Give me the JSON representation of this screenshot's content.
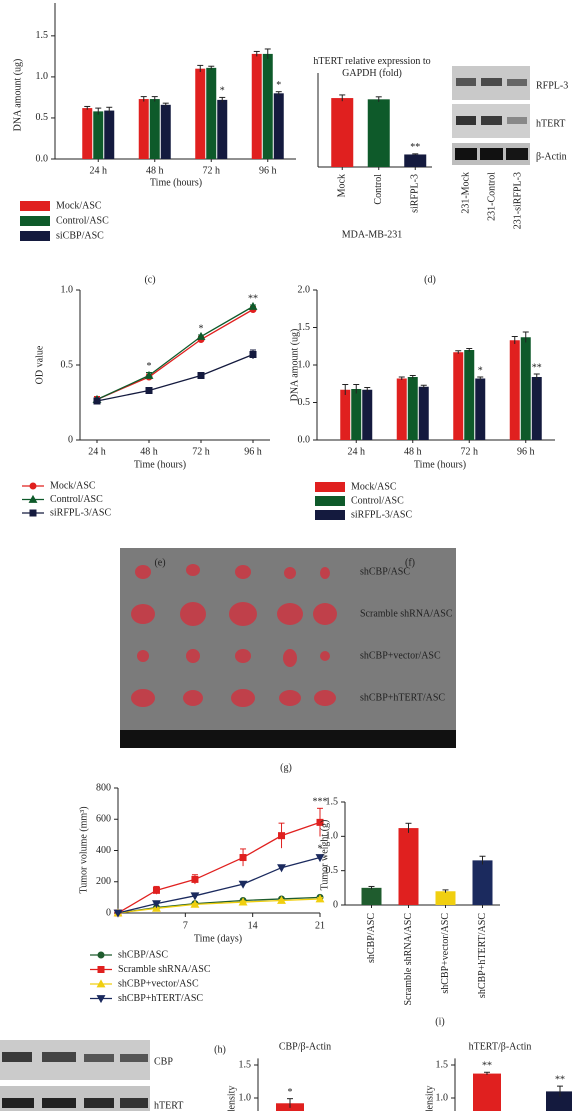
{
  "chart_data": [
    {
      "type": "bar",
      "y_label": "DNA amount (ug)",
      "x_label": "Time (hours)",
      "categories": [
        "24 h",
        "48 h",
        "72 h",
        "96 h"
      ],
      "series": [
        {
          "name": "Mock/ASC",
          "color": "#e0201f",
          "values": [
            0.62,
            0.73,
            1.1,
            1.28
          ],
          "errors": [
            0.02,
            0.03,
            0.04,
            0.03
          ],
          "annotations": [
            null,
            null,
            null,
            null
          ]
        },
        {
          "name": "Control/ASC",
          "color": "#0e5a2a",
          "values": [
            0.58,
            0.73,
            1.11,
            1.28
          ],
          "errors": [
            0.04,
            0.03,
            0.02,
            0.06
          ],
          "annotations": [
            null,
            null,
            null,
            null
          ]
        },
        {
          "name": "siCBP/ASC",
          "color": "#141a3e",
          "values": [
            0.59,
            0.66,
            0.72,
            0.8
          ],
          "errors": [
            0.04,
            0.02,
            0.03,
            0.02
          ],
          "annotations": [
            null,
            null,
            "*",
            "*"
          ]
        }
      ],
      "ylim": [
        0,
        1.9
      ],
      "yticks": [
        {
          "value": 0,
          "label": "0.0"
        },
        0.5,
        {
          "value": 1,
          "label": "1.0"
        },
        1.5
      ]
    },
    {
      "type": "bar",
      "title": "hTERT relative expression to GAPDH (fold)",
      "x_label": "MDA-MB-231",
      "categories": [
        "Mock",
        "Control",
        "siRFPL-3"
      ],
      "values": [
        1.1,
        1.08,
        0.2
      ],
      "errors": [
        0.05,
        0.04,
        0.01
      ],
      "colors": [
        "#e0201f",
        "#0e5a2a",
        "#141a3e"
      ],
      "annotations": [
        null,
        null,
        "**"
      ],
      "ylim": [
        0,
        1.5
      ]
    },
    {
      "type": "line",
      "y_label": "OD value",
      "x_label": "Time (hours)",
      "categories": [
        "24 h",
        "48 h",
        "72 h",
        "96 h"
      ],
      "series": [
        {
          "name": "Mock/ASC",
          "color": "#e0201f",
          "marker": "circle",
          "values": [
            0.27,
            0.42,
            0.67,
            0.87
          ],
          "errors": [
            0.02,
            0.02,
            0.02,
            0.02
          ],
          "annotations": [
            null,
            null,
            null,
            null
          ]
        },
        {
          "name": "Control/ASC",
          "color": "#0e5a2a",
          "marker": "triangle",
          "values": [
            0.27,
            0.43,
            0.69,
            0.89
          ],
          "errors": [
            0.01,
            0.02,
            0.01,
            0.01
          ],
          "annotations": [
            null,
            "*",
            "*",
            "**"
          ]
        },
        {
          "name": "siRFPL-3/ASC",
          "color": "#141a3e",
          "marker": "square",
          "values": [
            0.26,
            0.33,
            0.43,
            0.57
          ],
          "errors": [
            0.02,
            0.02,
            0.02,
            0.03
          ],
          "annotations": [
            null,
            null,
            null,
            null
          ]
        }
      ],
      "ylim": [
        0,
        1
      ],
      "yticks": [
        0,
        0.5,
        {
          "value": 1,
          "label": "1.0"
        }
      ]
    },
    {
      "type": "bar",
      "y_label": "DNA amount (ug)",
      "x_label": "Time (hours)",
      "categories": [
        "24 h",
        "48 h",
        "72 h",
        "96 h"
      ],
      "series": [
        {
          "name": "Mock/ASC",
          "color": "#e0201f",
          "values": [
            0.67,
            0.82,
            1.17,
            1.33
          ],
          "errors": [
            0.07,
            0.02,
            0.02,
            0.05
          ],
          "annotations": [
            null,
            null,
            null,
            null
          ]
        },
        {
          "name": "Control/ASC",
          "color": "#0e5a2a",
          "values": [
            0.68,
            0.84,
            1.2,
            1.37
          ],
          "errors": [
            0.06,
            0.02,
            0.02,
            0.07
          ],
          "annotations": [
            null,
            null,
            null,
            null
          ]
        },
        {
          "name": "siRFPL-3/ASC",
          "color": "#141a3e",
          "values": [
            0.67,
            0.71,
            0.82,
            0.84
          ],
          "errors": [
            0.03,
            0.02,
            0.02,
            0.04
          ],
          "annotations": [
            null,
            null,
            "*",
            "**"
          ]
        }
      ],
      "ylim": [
        0,
        2
      ],
      "yticks": [
        {
          "value": 0,
          "label": "0.0"
        },
        0.5,
        {
          "value": 1,
          "label": "1.0"
        },
        1.5,
        {
          "value": 2,
          "label": "2.0"
        }
      ]
    },
    {
      "type": "line",
      "y_label": "Tumor volume (mm³)",
      "x_label": "Time (days)",
      "x": [
        0,
        4,
        8,
        13,
        17,
        21
      ],
      "series": [
        {
          "name": "shCBP/ASC",
          "color": "#1f5c2e",
          "marker": "circle",
          "values": [
            0,
            35,
            60,
            80,
            90,
            100
          ],
          "errors": [
            0,
            4,
            5,
            6,
            6,
            8
          ],
          "annotations": [
            null,
            null,
            null,
            null,
            null,
            null
          ]
        },
        {
          "name": "Scramble shRNA/ASC",
          "color": "#e0201f",
          "marker": "square",
          "values": [
            0,
            145,
            215,
            355,
            495,
            580
          ],
          "errors": [
            0,
            25,
            30,
            55,
            80,
            90
          ],
          "annotations": [
            null,
            null,
            null,
            null,
            null,
            "***"
          ]
        },
        {
          "name": "shCBP+vector/ASC",
          "color": "#f0cf10",
          "marker": "triangle",
          "values": [
            0,
            30,
            55,
            70,
            80,
            90
          ],
          "errors": [
            0,
            4,
            5,
            6,
            6,
            8
          ],
          "annotations": [
            null,
            null,
            null,
            null,
            null,
            null
          ]
        },
        {
          "name": "shCBP+hTERT/ASC",
          "color": "#1b2a5e",
          "marker": "triangle-down",
          "values": [
            0,
            60,
            110,
            185,
            290,
            355
          ],
          "errors": [
            0,
            5,
            8,
            10,
            15,
            15
          ],
          "annotations": [
            null,
            null,
            null,
            null,
            null,
            "*"
          ]
        }
      ],
      "xlim": [
        0,
        21
      ],
      "xticks": [
        7,
        14,
        21
      ],
      "ylim": [
        0,
        800
      ],
      "yticks": [
        0,
        200,
        400,
        600,
        800
      ]
    },
    {
      "type": "bar",
      "y_label": "Tumor weight (g)",
      "categories": [
        "shCBP/ASC",
        "Scramble shRNA/ASC",
        "shCBP+vector/ASC",
        "shCBP+hTERT/ASC"
      ],
      "values": [
        0.25,
        1.12,
        0.2,
        0.65
      ],
      "errors": [
        0.02,
        0.07,
        0.02,
        0.06
      ],
      "colors": [
        "#1f5c2e",
        "#e0201f",
        "#f0cf10",
        "#1b2a5e"
      ],
      "annotations": [
        "",
        null,
        null,
        null
      ],
      "ylim": [
        0,
        1.5
      ],
      "yticks": [
        0,
        0.5,
        {
          "value": 1,
          "label": "1.0"
        },
        1.5
      ]
    },
    {
      "type": "bar",
      "title": "CBP/β-Actin",
      "y_label": "density",
      "categories": [
        null
      ],
      "values": [
        0.92
      ],
      "errors": [
        0.07
      ],
      "colors": [
        "#e0201f"
      ],
      "annotations": [
        "*"
      ],
      "ylim": [
        0,
        1.6
      ],
      "yticks": [
        {
          "value": 1,
          "label": "1.0"
        },
        1.5
      ]
    },
    {
      "type": "bar",
      "title": "hTERT/β-Actin",
      "y_label": "density",
      "categories": [
        null,
        null
      ],
      "values": [
        1.37,
        1.1
      ],
      "errors": [
        0.02,
        0.08
      ],
      "colors": [
        "#e0201f",
        "#141a3e"
      ],
      "annotations": [
        "**",
        "**"
      ],
      "ylim": [
        0,
        1.6
      ],
      "yticks": [
        {
          "value": 1,
          "label": "1.0"
        },
        1.5
      ]
    }
  ],
  "panel_labels": [
    "(c)",
    "(d)",
    "(e)",
    "(f)",
    "(g)",
    "(h)",
    "(i)"
  ],
  "blot_top": {
    "rows": [
      "RFPL-3",
      "hTERT",
      "β-Actin"
    ],
    "lanes": [
      "231-Mock",
      "231-Control",
      "231-siRFPL-3"
    ]
  },
  "photo": {
    "rows": [
      "shCBP/ASC",
      "Scramble shRNA/ASC",
      "shCBP+vector/ASC",
      "shCBP+hTERT/ASC"
    ]
  },
  "blot_bottom": {
    "rows": [
      "CBP",
      "hTERT"
    ]
  }
}
